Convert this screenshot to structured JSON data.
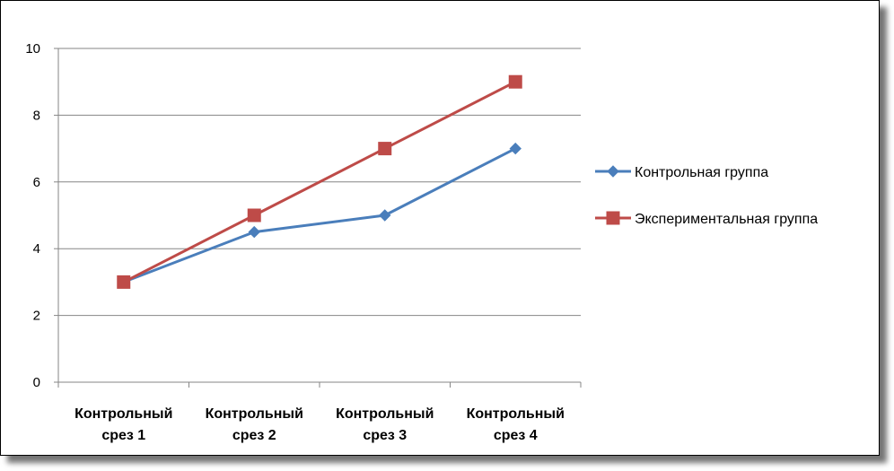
{
  "chart_data": {
    "type": "line",
    "categories": [
      [
        "Контрольный",
        "срез 1"
      ],
      [
        "Контрольный",
        "срез 2"
      ],
      [
        "Контрольный",
        "срез 3"
      ],
      [
        "Контрольный",
        "срез 4"
      ]
    ],
    "series": [
      {
        "name": "Контрольная группа",
        "values": [
          3,
          4.5,
          5,
          7
        ],
        "color": "#4a7ebb",
        "marker": "diamond"
      },
      {
        "name": "Экспериментальная группа",
        "values": [
          3,
          5,
          7,
          9
        ],
        "color": "#be4b48",
        "marker": "square"
      }
    ],
    "yticks": [
      0,
      2,
      4,
      6,
      8,
      10
    ],
    "ylim": [
      0,
      10
    ],
    "grid": true,
    "legend": "right",
    "title": "",
    "xlabel": "",
    "ylabel": ""
  }
}
